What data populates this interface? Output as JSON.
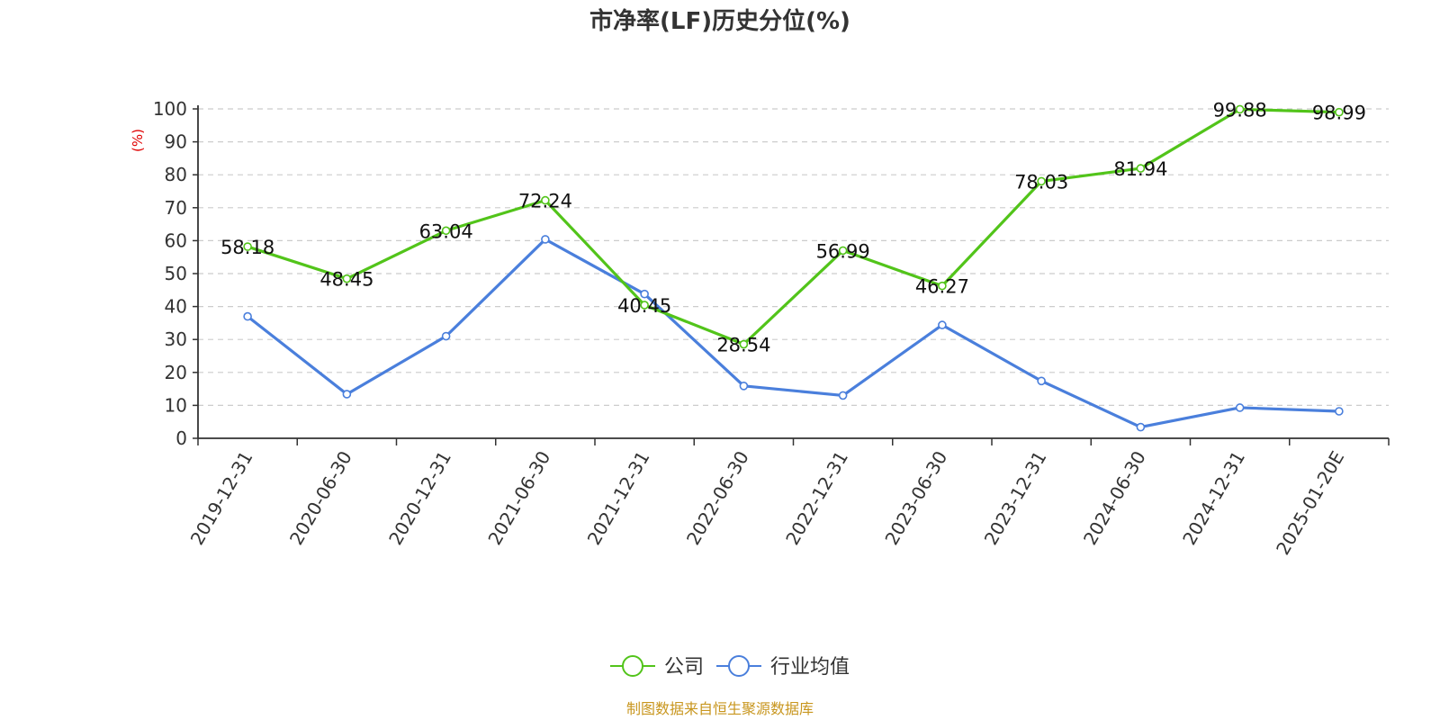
{
  "chart_data": {
    "type": "line",
    "title": "市净率(LF)历史分位(%)",
    "ylabel": "(%)",
    "xlabel": "",
    "ylim": [
      0,
      100
    ],
    "yticks": [
      0,
      10,
      20,
      30,
      40,
      50,
      60,
      70,
      80,
      90,
      100
    ],
    "grid": true,
    "legend_position": "bottom-center",
    "categories": [
      "2019-12-31",
      "2020-06-30",
      "2020-12-31",
      "2021-06-30",
      "2021-12-31",
      "2022-06-30",
      "2022-12-31",
      "2023-06-30",
      "2023-12-31",
      "2024-06-30",
      "2024-12-31",
      "2025-01-20E"
    ],
    "series": [
      {
        "name": "公司",
        "color": "#52c41a",
        "show_labels": true,
        "values": [
          58.18,
          48.45,
          63.04,
          72.24,
          40.45,
          28.54,
          56.99,
          46.27,
          78.03,
          81.94,
          99.88,
          98.99
        ]
      },
      {
        "name": "行业均值",
        "color": "#4a7fdc",
        "show_labels": false,
        "values": [
          37.0,
          13.4,
          31.0,
          60.4,
          43.8,
          15.9,
          13.0,
          34.4,
          17.4,
          3.4,
          9.3,
          8.2
        ]
      }
    ],
    "source": "制图数据来自恒生聚源数据库"
  }
}
